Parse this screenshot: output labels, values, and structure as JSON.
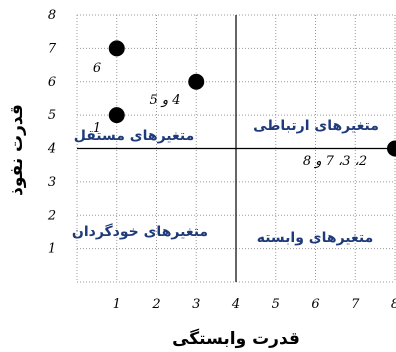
{
  "chart_data": {
    "type": "scatter",
    "xlabel": "قدرت وابستگی",
    "ylabel": "قدرت نفوذ",
    "xlim": [
      0,
      8
    ],
    "ylim": [
      0,
      8
    ],
    "x_ticks": [
      "1",
      "2",
      "3",
      "4",
      "5",
      "6",
      "7",
      "8"
    ],
    "y_ticks": [
      "1",
      "2",
      "3",
      "4",
      "5",
      "6",
      "7",
      "8"
    ],
    "grid": "dotted",
    "divider": {
      "x": 4,
      "y": 4
    },
    "points": [
      {
        "x": 1,
        "y": 7,
        "label": "6"
      },
      {
        "x": 3,
        "y": 6,
        "label": "4 و 5"
      },
      {
        "x": 1,
        "y": 5,
        "label": "1"
      },
      {
        "x": 8,
        "y": 4,
        "label": "2، 3، 7 و 8"
      }
    ],
    "quadrants": {
      "top_left": "متغیرهای مستقل",
      "top_right": "متغیرهای ارتباطی",
      "bottom_left": "متغیرهای خودگردان",
      "bottom_right": "متغیرهای وابسته"
    }
  },
  "colors": {
    "quadrant_text": "#1f3a7a",
    "points": "#000000",
    "grid": "#9a9a9a"
  }
}
